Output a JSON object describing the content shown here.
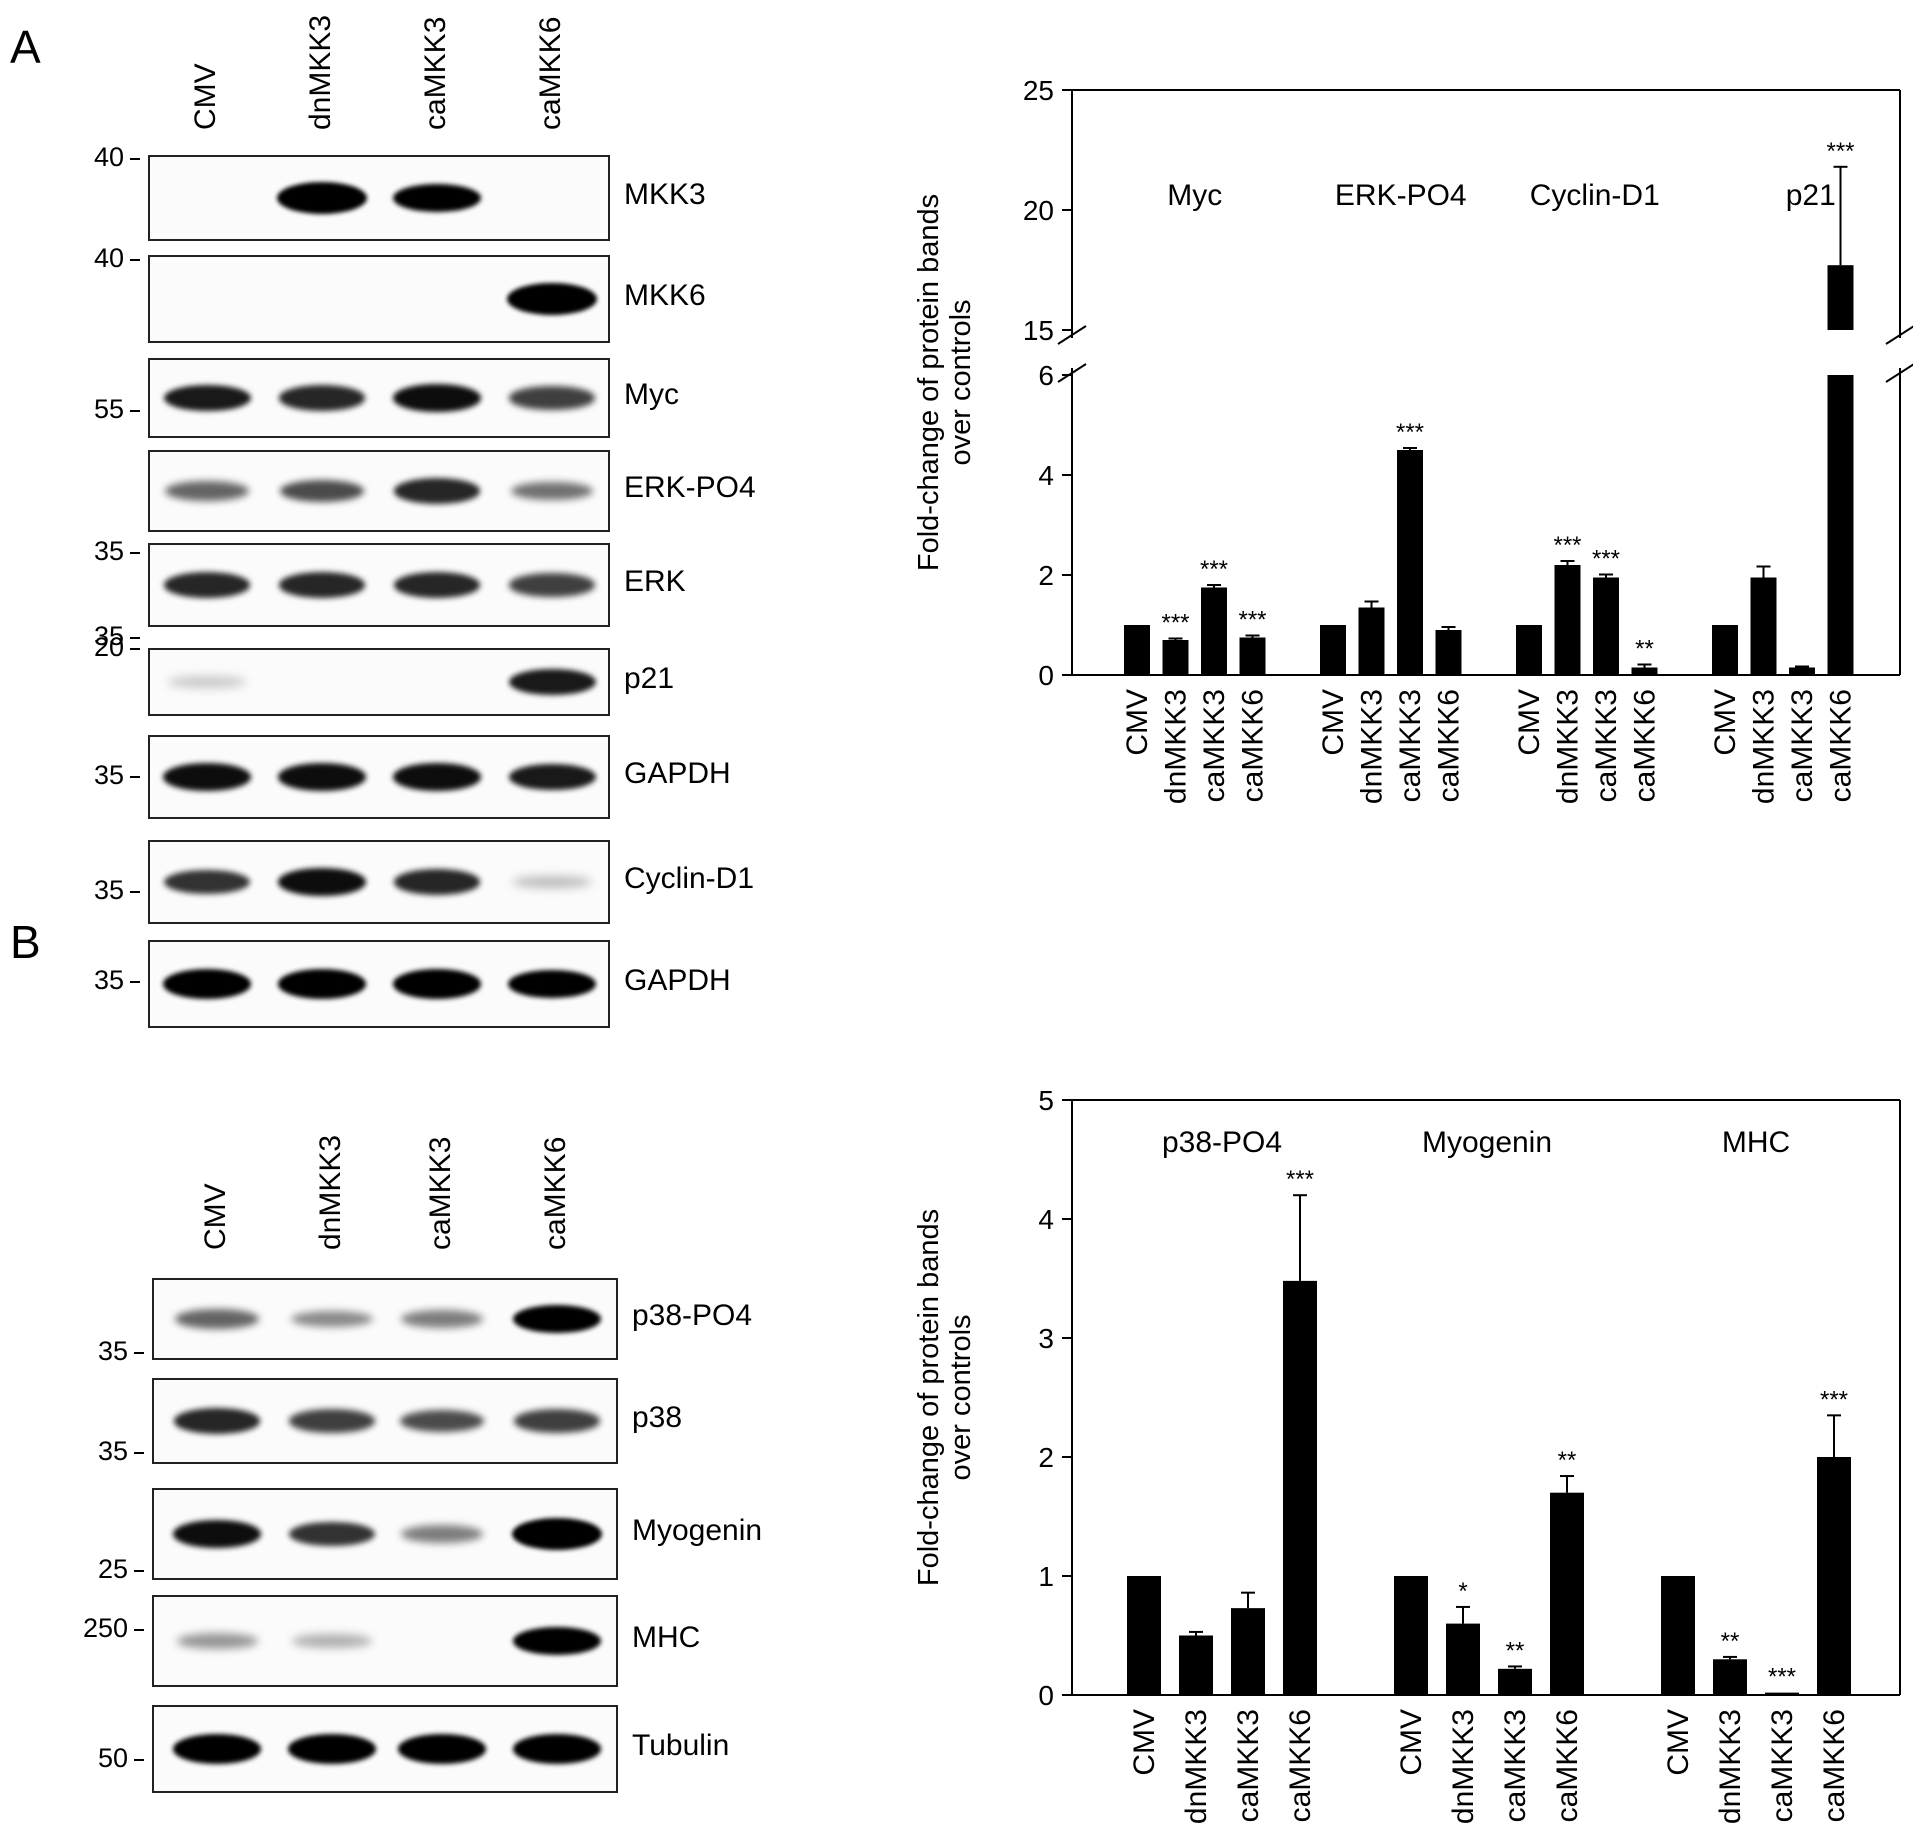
{
  "panels": {
    "a": "A",
    "b": "B"
  },
  "lanes": [
    "CMV",
    "dnMKK3",
    "caMKK3",
    "caMKK6"
  ],
  "blots_a": [
    {
      "name": "MKK3",
      "mw": "40",
      "bands": [
        0,
        1,
        0.85,
        0
      ]
    },
    {
      "name": "MKK6",
      "mw": "40",
      "bands": [
        0,
        0,
        0,
        1
      ]
    },
    {
      "name": "Myc",
      "mw": "55",
      "bands": [
        0.75,
        0.7,
        0.8,
        0.6
      ]
    },
    {
      "name": "ERK-PO4",
      "mw": "35",
      "bands": [
        0.45,
        0.55,
        0.7,
        0.4
      ]
    },
    {
      "name": "ERK",
      "mw": "35",
      "bands": [
        0.7,
        0.7,
        0.7,
        0.6
      ]
    },
    {
      "name": "p21",
      "mw": "20",
      "bands": [
        0.05,
        0,
        0,
        0.75
      ]
    },
    {
      "name": "GAPDH",
      "mw": "35",
      "bands": [
        0.8,
        0.8,
        0.8,
        0.75
      ]
    },
    {
      "name": "Cyclin-D1",
      "mw": "35",
      "bands": [
        0.65,
        0.8,
        0.7,
        0.1
      ]
    },
    {
      "name": "GAPDH",
      "mw": "35",
      "bands": [
        0.9,
        0.9,
        0.9,
        0.85
      ]
    }
  ],
  "blots_b": [
    {
      "name": "p38-PO4",
      "mw": "35",
      "bands": [
        0.45,
        0.3,
        0.35,
        0.85
      ]
    },
    {
      "name": "p38",
      "mw": "35",
      "bands": [
        0.7,
        0.6,
        0.55,
        0.6
      ]
    },
    {
      "name": "Myogenin",
      "mw": "25",
      "bands": [
        0.8,
        0.65,
        0.35,
        1
      ]
    },
    {
      "name": "MHC",
      "mw": "250",
      "bands": [
        0.25,
        0.15,
        0,
        0.85
      ]
    },
    {
      "name": "Tubulin",
      "mw": "50",
      "bands": [
        0.9,
        0.9,
        0.9,
        0.9
      ]
    }
  ],
  "chart_data": [
    {
      "type": "bar",
      "ylabel": "Fold-change of protein bands over controls",
      "broken_axis": {
        "lower": [
          0,
          6
        ],
        "upper": [
          15,
          25
        ]
      },
      "yticks_lower": [
        0,
        2,
        4,
        6
      ],
      "yticks_upper": [
        15,
        20,
        25
      ],
      "categories": [
        "CMV",
        "dnMKK3",
        "caMKK3",
        "caMKK6"
      ],
      "groups": [
        {
          "name": "Myc",
          "values": [
            1.0,
            0.7,
            1.75,
            0.75
          ],
          "errors": [
            0,
            0.03,
            0.05,
            0.04
          ],
          "sig": [
            "",
            "***",
            "***",
            "***"
          ]
        },
        {
          "name": "ERK-PO4",
          "values": [
            1.0,
            1.35,
            4.5,
            0.9
          ],
          "errors": [
            0,
            0.12,
            0.04,
            0.06
          ],
          "sig": [
            "",
            "",
            "***",
            ""
          ]
        },
        {
          "name": "Cyclin-D1",
          "values": [
            1.0,
            2.2,
            1.95,
            0.15
          ],
          "errors": [
            0,
            0.08,
            0.06,
            0.06
          ],
          "sig": [
            "",
            "***",
            "***",
            "**"
          ]
        },
        {
          "name": "p21",
          "values": [
            1.0,
            1.95,
            0.15,
            17.7
          ],
          "errors": [
            0,
            0.22,
            0.02,
            4.1
          ],
          "sig": [
            "",
            "",
            "",
            "***"
          ]
        }
      ]
    },
    {
      "type": "bar",
      "ylabel": "Fold-change of protein bands over controls",
      "ylim": [
        0,
        5
      ],
      "yticks": [
        0,
        1,
        2,
        3,
        4,
        5
      ],
      "categories": [
        "CMV",
        "dnMKK3",
        "caMKK3",
        "caMKK6"
      ],
      "groups": [
        {
          "name": "p38-PO4",
          "values": [
            1.0,
            0.5,
            0.73,
            3.48
          ],
          "errors": [
            0,
            0.03,
            0.13,
            0.72
          ],
          "sig": [
            "",
            "",
            "",
            "***"
          ]
        },
        {
          "name": "Myogenin",
          "values": [
            1.0,
            0.6,
            0.22,
            1.7
          ],
          "errors": [
            0,
            0.14,
            0.02,
            0.14
          ],
          "sig": [
            "",
            "*",
            "**",
            "**"
          ]
        },
        {
          "name": "MHC",
          "values": [
            1.0,
            0.3,
            0.02,
            2.0
          ],
          "errors": [
            0,
            0.02,
            0,
            0.35
          ],
          "sig": [
            "",
            "**",
            "***",
            "***"
          ]
        }
      ]
    }
  ]
}
